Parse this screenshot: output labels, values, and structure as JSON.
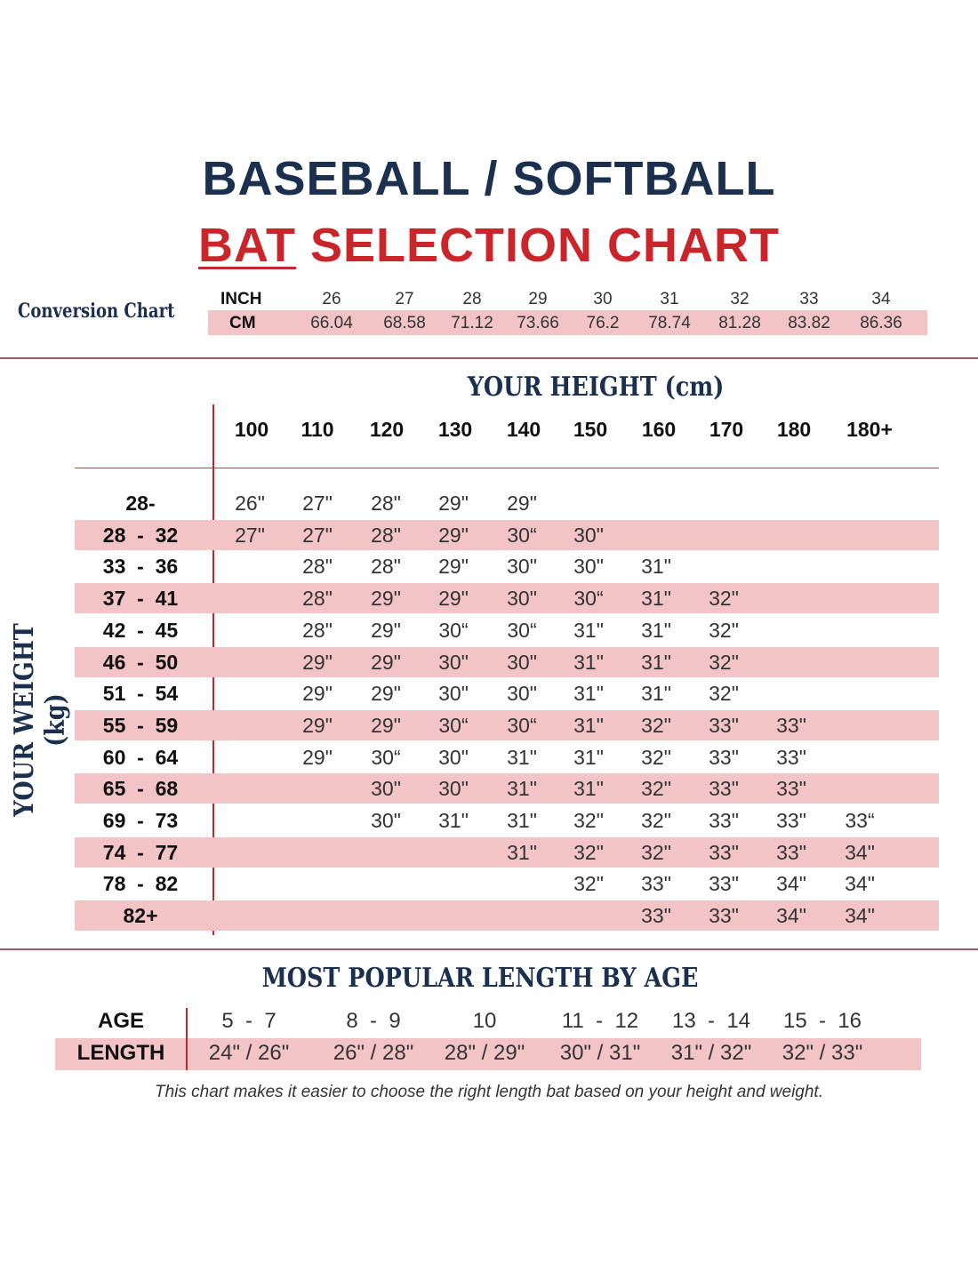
{
  "title": {
    "line1": "BASEBALL / SOFTBALL",
    "line2a": "BAT",
    "line2b": " SELECTION CHART"
  },
  "conversion": {
    "title": "Conversion Chart",
    "inch_label": "INCH",
    "cm_label": "CM",
    "inch": [
      "26",
      "27",
      "28",
      "29",
      "30",
      "31",
      "32",
      "33",
      "34"
    ],
    "cm": [
      "66.04",
      "68.58",
      "71.12",
      "73.66",
      "76.2",
      "78.74",
      "81.28",
      "83.82",
      "86.36"
    ]
  },
  "chart_data": {
    "type": "table",
    "title": "BAT SELECTION CHART",
    "xlabel": "YOUR HEIGHT (cm)",
    "ylabel": "YOUR WEIGHT (kg)",
    "columns": [
      "100",
      "110",
      "120",
      "130",
      "140",
      "150",
      "160",
      "170",
      "180",
      "180+"
    ],
    "rows": [
      {
        "label": "28-",
        "cells": [
          "26\"",
          "27\"",
          "28\"",
          "29\"",
          "29\"",
          "",
          "",
          "",
          "",
          ""
        ]
      },
      {
        "label": "28  -  32",
        "cells": [
          "27\"",
          "27\"",
          "28\"",
          "29\"",
          "30“",
          "30\"",
          "",
          "",
          "",
          ""
        ]
      },
      {
        "label": "33  -  36",
        "cells": [
          "",
          "28\"",
          "28\"",
          "29\"",
          "30\"",
          "30\"",
          "31\"",
          "",
          "",
          ""
        ]
      },
      {
        "label": "37  -  41",
        "cells": [
          "",
          "28\"",
          "29\"",
          "29\"",
          "30\"",
          "30“",
          "31\"",
          "32\"",
          "",
          ""
        ]
      },
      {
        "label": "42  -  45",
        "cells": [
          "",
          "28\"",
          "29\"",
          "30“",
          "30“",
          "31\"",
          "31\"",
          "32\"",
          "",
          ""
        ]
      },
      {
        "label": "46  -  50",
        "cells": [
          "",
          "29\"",
          "29\"",
          "30\"",
          "30\"",
          "31\"",
          "31\"",
          "32\"",
          "",
          ""
        ]
      },
      {
        "label": "51  -  54",
        "cells": [
          "",
          "29\"",
          "29\"",
          "30\"",
          "30\"",
          "31\"",
          "31\"",
          "32\"",
          "",
          ""
        ]
      },
      {
        "label": "55  -  59",
        "cells": [
          "",
          "29\"",
          "29\"",
          "30“",
          "30“",
          "31\"",
          "32\"",
          "33\"",
          "33\"",
          ""
        ]
      },
      {
        "label": "60  -  64",
        "cells": [
          "",
          "29\"",
          "30“",
          "30\"",
          "31\"",
          "31\"",
          "32\"",
          "33\"",
          "33\"",
          ""
        ]
      },
      {
        "label": "65  -  68",
        "cells": [
          "",
          "",
          "30\"",
          "30\"",
          "31\"",
          "31\"",
          "32\"",
          "33\"",
          "33\"",
          ""
        ]
      },
      {
        "label": "69  -  73",
        "cells": [
          "",
          "",
          "30\"",
          "31\"",
          "31\"",
          "32\"",
          "32\"",
          "33\"",
          "33\"",
          "33“"
        ]
      },
      {
        "label": "74  -  77",
        "cells": [
          "",
          "",
          "",
          "",
          "31\"",
          "32\"",
          "32\"",
          "33\"",
          "33\"",
          "34\""
        ]
      },
      {
        "label": "78  -  82",
        "cells": [
          "",
          "",
          "",
          "",
          "",
          "32\"",
          "33\"",
          "33\"",
          "34\"",
          "34\""
        ]
      },
      {
        "label": "82+",
        "cells": [
          "",
          "",
          "",
          "",
          "",
          "",
          "33\"",
          "33\"",
          "34\"",
          "34\""
        ]
      }
    ]
  },
  "age": {
    "title": "MOST POPULAR LENGTH BY AGE",
    "age_label": "AGE",
    "length_label": "LENGTH",
    "ages": [
      "5  -  7",
      "8  -  9",
      "10",
      "11  -  12",
      "13  -  14",
      "15  -  16"
    ],
    "lengths": [
      "24\" / 26\"",
      "26\" / 28\"",
      "28\" / 29\"",
      "30\" / 31\"",
      "31\" / 32\"",
      "32\" / 33\""
    ]
  },
  "footer": "This chart makes it easier to choose the right length bat based on your height and weight.",
  "colors": {
    "navy": "#1b2f4e",
    "red": "#c8262b",
    "pink": "#f2c4c6"
  }
}
